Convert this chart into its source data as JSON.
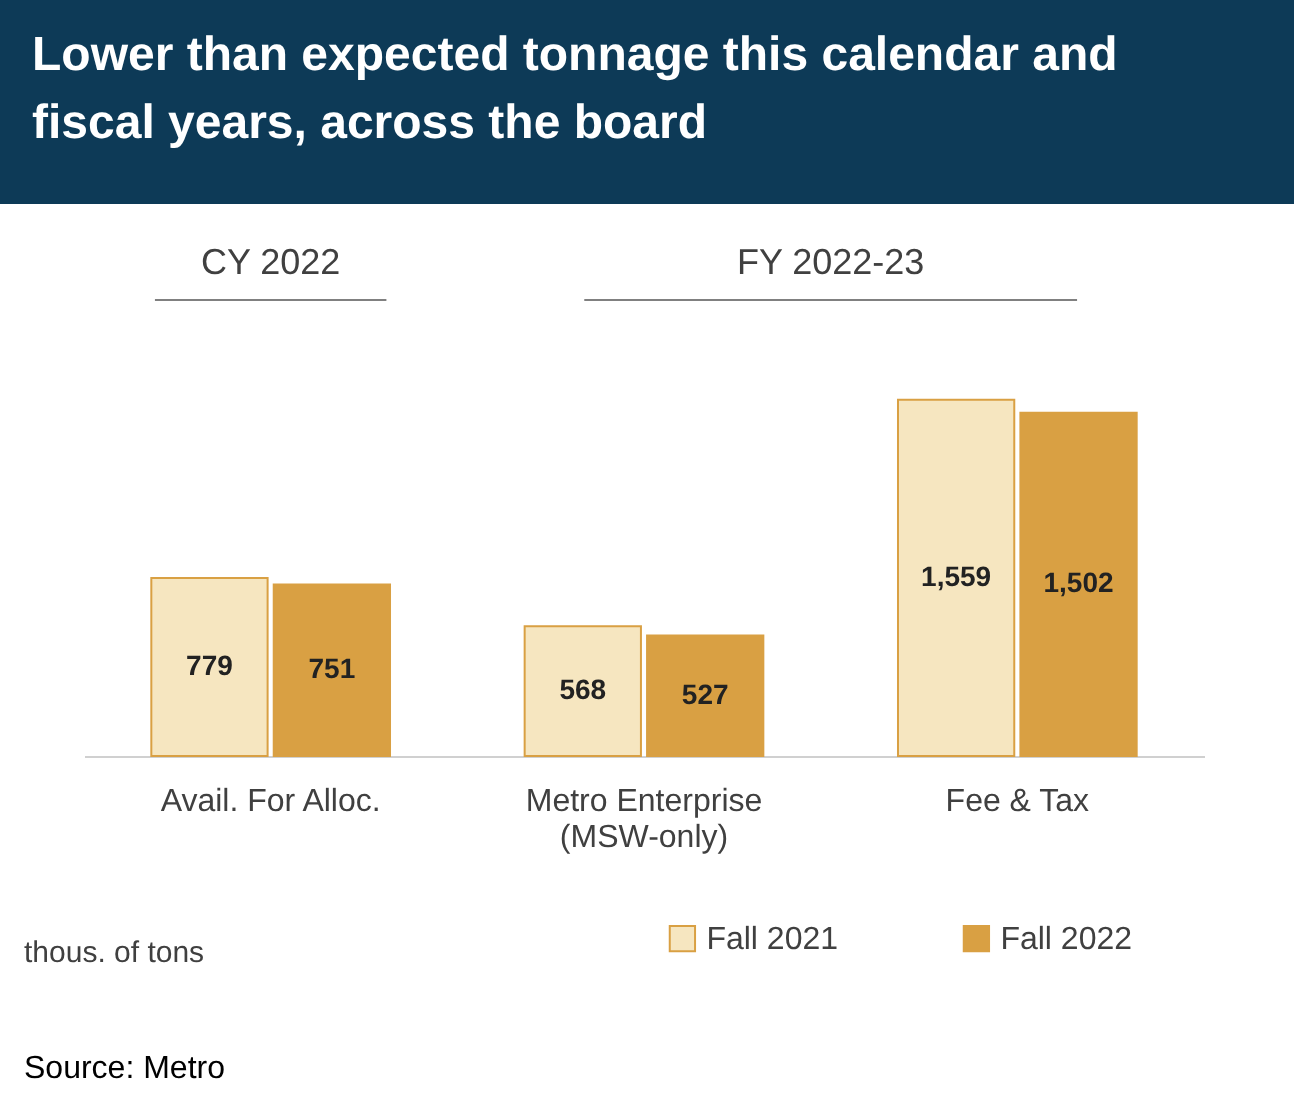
{
  "chart_data": {
    "type": "bar",
    "title": "Lower than expected tonnage this calendar and fiscal years, across the board",
    "categories": [
      "Avail. For Alloc.",
      "Metro Enterprise (MSW-only)",
      "Fee & Tax"
    ],
    "series": [
      {
        "name": "Fall 2021",
        "color": "#f6e6c0",
        "values": [
          779,
          568,
          1559
        ],
        "value_labels": [
          "779",
          "568",
          "1,559"
        ]
      },
      {
        "name": "Fall 2022",
        "color": "#d9a043",
        "values": [
          751,
          527,
          1502
        ],
        "value_labels": [
          "751",
          "527",
          "1,502"
        ]
      }
    ],
    "grid": false,
    "legend": "bottom right",
    "annotations": [
      "CY 2022",
      "FY 2022-23",
      "thous. of tons",
      "Source: Metro"
    ]
  }
}
